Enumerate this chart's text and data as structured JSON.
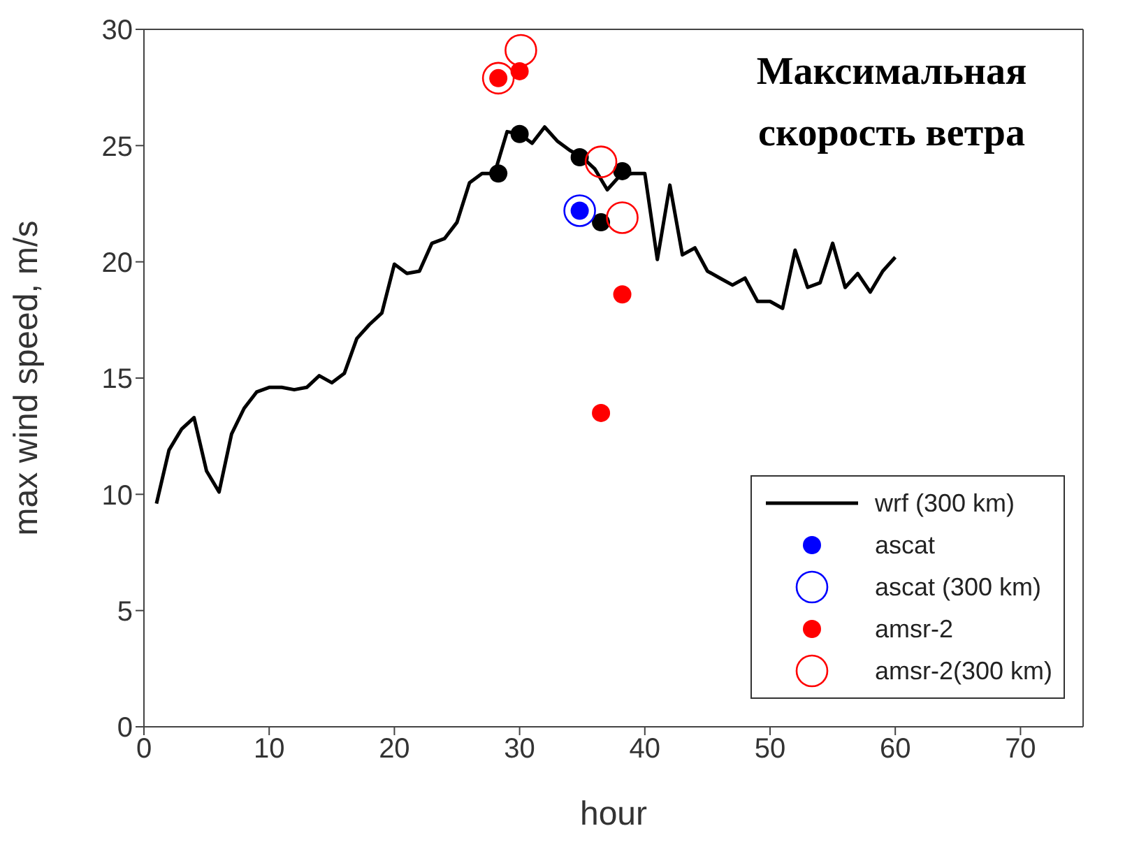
{
  "chart_data": {
    "type": "line",
    "xlabel": "hour",
    "ylabel": "max wind speed, m/s",
    "annotations": [
      "Максимальная скорость ветра"
    ],
    "xlim": [
      0,
      75
    ],
    "xticks": [
      0,
      10,
      20,
      30,
      40,
      50,
      60,
      70
    ],
    "ylim": [
      0,
      30
    ],
    "yticks": [
      0,
      5,
      10,
      15,
      20,
      25,
      30
    ],
    "legend": "bottom right",
    "series": [
      {
        "name": "wrf (300 km)",
        "color": "#000000",
        "marker": "none",
        "line_style": "solid",
        "x": [
          1,
          2,
          3,
          4,
          5,
          6,
          7,
          8,
          9,
          10,
          11,
          12,
          13,
          14,
          15,
          16,
          17,
          18,
          19,
          20,
          21,
          22,
          23,
          24,
          25,
          26,
          27,
          28,
          29,
          30,
          31,
          32,
          33,
          34,
          35,
          36,
          37,
          38,
          39,
          40,
          41,
          42,
          43,
          44,
          45,
          46,
          47,
          48,
          49,
          50,
          51,
          52,
          53,
          54,
          55,
          56,
          57,
          58,
          59,
          60
        ],
        "values": [
          9.6,
          11.9,
          12.8,
          13.3,
          11.0,
          10.1,
          12.6,
          13.7,
          14.4,
          14.6,
          14.6,
          14.5,
          14.6,
          15.1,
          14.8,
          15.2,
          16.7,
          17.3,
          17.8,
          19.9,
          19.5,
          19.6,
          20.8,
          21.0,
          21.7,
          23.4,
          23.8,
          23.8,
          25.6,
          25.5,
          25.1,
          25.8,
          25.2,
          24.8,
          24.5,
          24.0,
          23.1,
          23.7,
          23.8,
          23.8,
          20.1,
          23.3,
          20.3,
          20.6,
          19.6,
          19.3,
          19.0,
          19.3,
          18.3,
          18.3,
          18.0,
          20.5,
          18.9,
          19.1,
          20.8,
          18.9,
          19.5,
          18.7,
          19.6,
          20.2
        ]
      },
      {
        "type": "scatter",
        "color": "#000000",
        "marker": "circle",
        "x": [
          28.3,
          30,
          34.8,
          36.5,
          38.2
        ],
        "values": [
          23.8,
          25.5,
          24.5,
          21.7,
          23.9
        ]
      },
      {
        "name": "ascat",
        "type": "scatter",
        "color": "#0000ff",
        "marker": "circle",
        "x": [
          34.8
        ],
        "values": [
          22.2
        ]
      },
      {
        "name": "ascat (300 km)",
        "type": "scatter",
        "color": "#0000ff",
        "x": [
          34.8
        ],
        "values": [
          22.2
        ]
      },
      {
        "name": "amsr-2",
        "type": "scatter",
        "color": "#ff0000",
        "marker": "circle",
        "x": [
          28.3,
          30,
          36.5,
          38.2
        ],
        "values": [
          27.9,
          28.2,
          13.5,
          18.6
        ]
      },
      {
        "name": "amsr-2(300 km)",
        "type": "scatter",
        "color": "#ff0000",
        "x": [
          28.3,
          30.1,
          36.5,
          38.2
        ],
        "values": [
          27.9,
          29.1,
          24.3,
          21.9
        ]
      }
    ]
  }
}
